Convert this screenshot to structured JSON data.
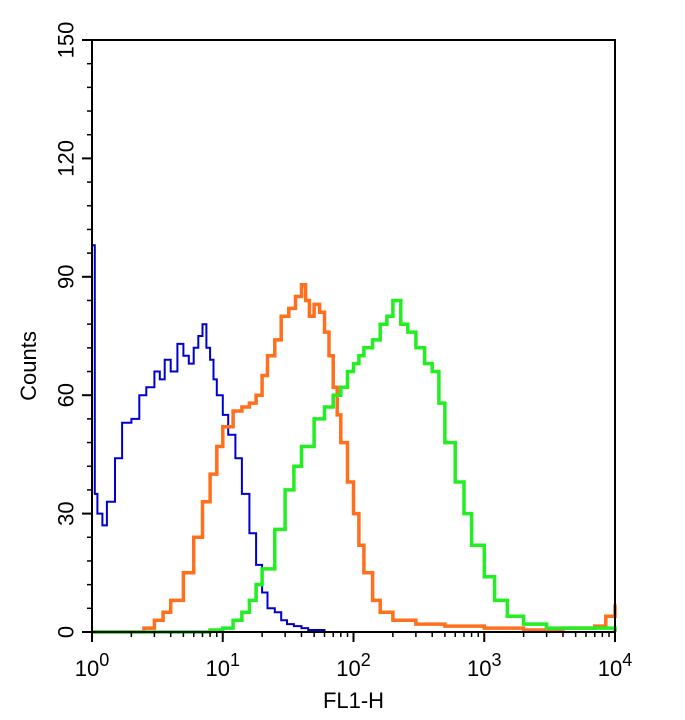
{
  "chart_data": {
    "type": "line",
    "title": "",
    "xlabel": "FL1-H",
    "ylabel": "Counts",
    "x_scale": "log",
    "xlim": [
      1,
      10000
    ],
    "ylim": [
      0,
      150
    ],
    "x_ticks": [
      {
        "value": 1,
        "base": "10",
        "exp": "0"
      },
      {
        "value": 10,
        "base": "10",
        "exp": "1"
      },
      {
        "value": 100,
        "base": "10",
        "exp": "2"
      },
      {
        "value": 1000,
        "base": "10",
        "exp": "3"
      },
      {
        "value": 10000,
        "base": "10",
        "exp": "4"
      }
    ],
    "y_ticks": [
      0,
      30,
      60,
      90,
      120,
      150
    ],
    "grid": false,
    "legend": "none",
    "series": [
      {
        "color": "#0000cc",
        "x": [
          1.0,
          1.05,
          1.1,
          1.2,
          1.3,
          1.5,
          1.7,
          2.0,
          2.3,
          2.6,
          3.0,
          3.3,
          3.6,
          4.0,
          4.5,
          5.0,
          5.5,
          6.0,
          6.5,
          7.0,
          7.5,
          8.0,
          8.5,
          9.0,
          10.0,
          11.0,
          12.5,
          14.0,
          16.0,
          18.0,
          20.0,
          22.0,
          25.0,
          28.0,
          31.0,
          35.0,
          40.0,
          45.0,
          50.0,
          60.0,
          100.0,
          1000.0,
          10000.0
        ],
        "y": [
          98,
          35,
          30,
          27,
          33,
          44,
          53,
          54,
          60,
          62,
          66,
          64,
          69,
          66,
          73,
          70,
          68,
          72,
          75,
          78,
          72,
          69,
          64,
          60,
          55,
          50,
          44,
          35,
          25,
          17,
          10,
          6,
          5,
          3,
          2,
          1.5,
          1,
          0.5,
          0.5,
          0,
          0,
          0,
          0
        ]
      },
      {
        "color": "#ff6f1c",
        "x": [
          1.0,
          1.5,
          2.0,
          2.5,
          3.0,
          3.5,
          4.0,
          5.0,
          6.0,
          7.0,
          8.0,
          9.0,
          10.0,
          12.0,
          14.0,
          16.0,
          18.0,
          20.0,
          22.0,
          25.0,
          28.0,
          32.0,
          36.0,
          40.0,
          43.0,
          46.0,
          50.0,
          55.0,
          60.0,
          65.0,
          70.0,
          75.0,
          80.0,
          90.0,
          100.0,
          110.0,
          120.0,
          140.0,
          160.0,
          200.0,
          300.0,
          500.0,
          1000.0,
          2000.0,
          4000.0,
          7000.0,
          8500.0,
          10000.0
        ],
        "y": [
          0,
          0,
          0,
          1,
          3,
          5,
          8,
          15,
          24,
          33,
          40,
          47,
          52,
          56,
          57,
          58,
          60,
          65,
          70,
          74,
          80,
          82,
          85,
          88,
          84,
          80,
          83,
          81,
          76,
          70,
          62,
          55,
          48,
          38,
          30,
          22,
          15,
          8,
          5,
          3,
          2,
          1.5,
          1,
          0.5,
          1,
          1.5,
          4,
          7
        ]
      },
      {
        "color": "#22ee22",
        "x": [
          1.0,
          5.0,
          8.0,
          10.0,
          12.0,
          14.0,
          16.0,
          18.0,
          20.0,
          25.0,
          30.0,
          35.0,
          40.0,
          50.0,
          60.0,
          70.0,
          80.0,
          90.0,
          100.0,
          110.0,
          120.0,
          140.0,
          160.0,
          180.0,
          200.0,
          230.0,
          260.0,
          300.0,
          350.0,
          400.0,
          450.0,
          500.0,
          600.0,
          700.0,
          800.0,
          1000.0,
          1200.0,
          1500.0,
          2000.0,
          3000.0,
          10000.0
        ],
        "y": [
          0,
          0,
          0.5,
          1,
          3,
          5,
          8,
          12,
          16,
          26,
          36,
          42,
          47,
          54,
          57,
          60,
          62,
          66,
          68,
          70,
          72,
          74,
          78,
          80,
          84,
          78,
          76,
          72,
          68,
          66,
          58,
          48,
          38,
          30,
          22,
          14,
          8,
          4,
          2,
          1,
          0
        ]
      }
    ]
  }
}
